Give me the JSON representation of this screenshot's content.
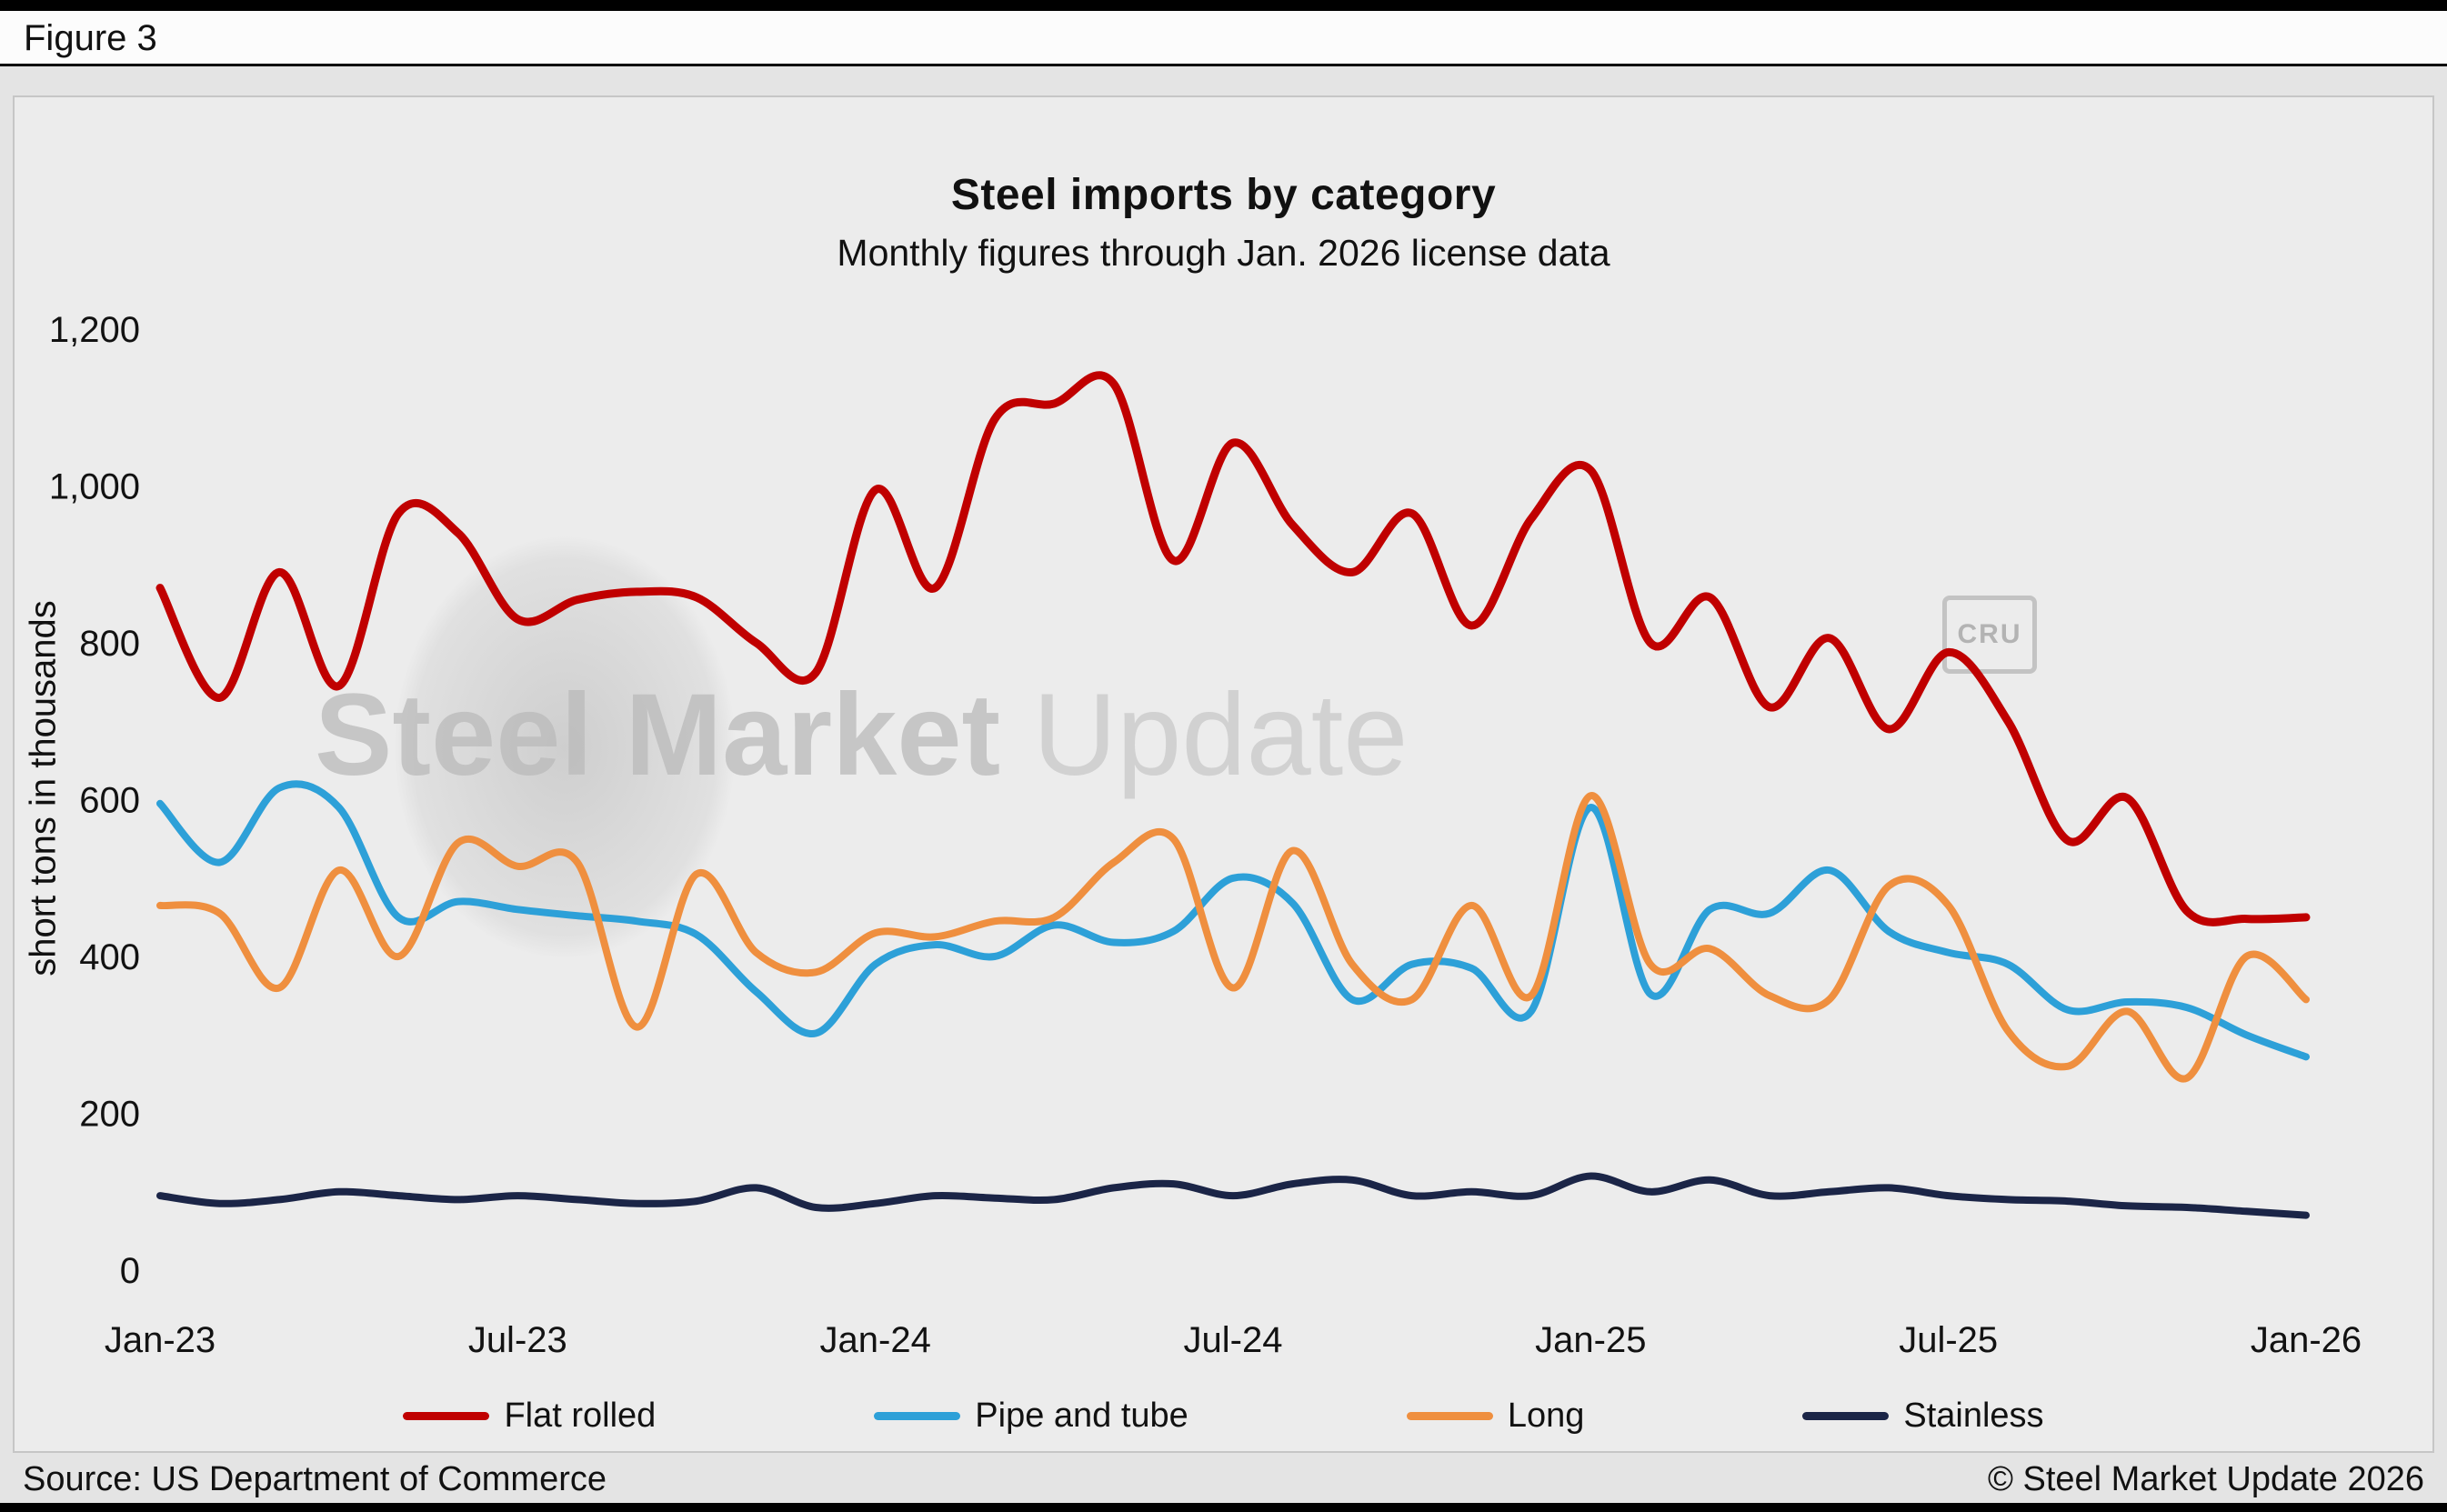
{
  "figure_label": "Figure 3",
  "chart_data": {
    "type": "line",
    "title": "Steel imports by category",
    "subtitle": "Monthly figures through Jan. 2026 license data",
    "ylabel": "short tons in thousands",
    "xlabel": "",
    "ylim": [
      0,
      1200
    ],
    "grid": false,
    "legend_position": "bottom",
    "yticks": [
      0,
      200,
      400,
      600,
      800,
      1000,
      1200
    ],
    "ytick_labels": [
      "0",
      "200",
      "400",
      "600",
      "800",
      "1,000",
      "1,200"
    ],
    "xtick_indices": [
      0,
      6,
      12,
      18,
      24,
      30,
      36
    ],
    "xtick_labels": [
      "Jan-23",
      "Jul-23",
      "Jan-24",
      "Jul-24",
      "Jan-25",
      "Jul-25",
      "Jan-26"
    ],
    "categories": [
      "Jan-23",
      "Feb-23",
      "Mar-23",
      "Apr-23",
      "May-23",
      "Jun-23",
      "Jul-23",
      "Aug-23",
      "Sep-23",
      "Oct-23",
      "Nov-23",
      "Dec-23",
      "Jan-24",
      "Feb-24",
      "Mar-24",
      "Apr-24",
      "May-24",
      "Jun-24",
      "Jul-24",
      "Aug-24",
      "Sep-24",
      "Oct-24",
      "Nov-24",
      "Dec-24",
      "Jan-25",
      "Feb-25",
      "Mar-25",
      "Apr-25",
      "May-25",
      "Jun-25",
      "Jul-25",
      "Aug-25",
      "Sep-25",
      "Oct-25",
      "Nov-25",
      "Dec-25",
      "Jan-26"
    ],
    "series": [
      {
        "name": "Flat rolled",
        "color": "#c00000",
        "width": 9,
        "z": 3,
        "values": [
          870,
          730,
          890,
          745,
          965,
          940,
          830,
          855,
          865,
          858,
          800,
          762,
          995,
          870,
          1085,
          1105,
          1130,
          905,
          1055,
          950,
          890,
          965,
          822,
          958,
          1020,
          800,
          858,
          718,
          806,
          690,
          788,
          700,
          548,
          602,
          458,
          448,
          450
        ]
      },
      {
        "name": "Pipe and tube",
        "color": "#2da0d8",
        "width": 8,
        "z": 1,
        "values": [
          595,
          520,
          615,
          590,
          450,
          470,
          460,
          452,
          445,
          428,
          355,
          302,
          390,
          415,
          400,
          440,
          418,
          432,
          500,
          468,
          345,
          390,
          385,
          330,
          590,
          352,
          460,
          455,
          510,
          432,
          405,
          390,
          332,
          342,
          335,
          300,
          272
        ]
      },
      {
        "name": "Long",
        "color": "#ef8f3f",
        "width": 8,
        "z": 2,
        "values": [
          465,
          455,
          360,
          510,
          400,
          545,
          515,
          520,
          310,
          505,
          405,
          380,
          430,
          425,
          445,
          450,
          520,
          550,
          360,
          535,
          390,
          345,
          465,
          350,
          605,
          390,
          410,
          350,
          345,
          490,
          465,
          305,
          260,
          330,
          245,
          400,
          345
        ]
      },
      {
        "name": "Stainless",
        "color": "#1b2547",
        "width": 8,
        "z": 0,
        "values": [
          95,
          85,
          90,
          100,
          95,
          90,
          95,
          90,
          85,
          88,
          105,
          80,
          85,
          95,
          92,
          90,
          105,
          110,
          95,
          110,
          115,
          95,
          100,
          95,
          120,
          100,
          115,
          95,
          100,
          105,
          95,
          90,
          88,
          82,
          80,
          75,
          70
        ]
      }
    ]
  },
  "watermark": {
    "brand_bold": "Steel Market",
    "brand_light": " Update",
    "badge": "CRU"
  },
  "footer": {
    "source": "Source: US Department of Commerce",
    "copyright": "© Steel Market Update 2026"
  }
}
